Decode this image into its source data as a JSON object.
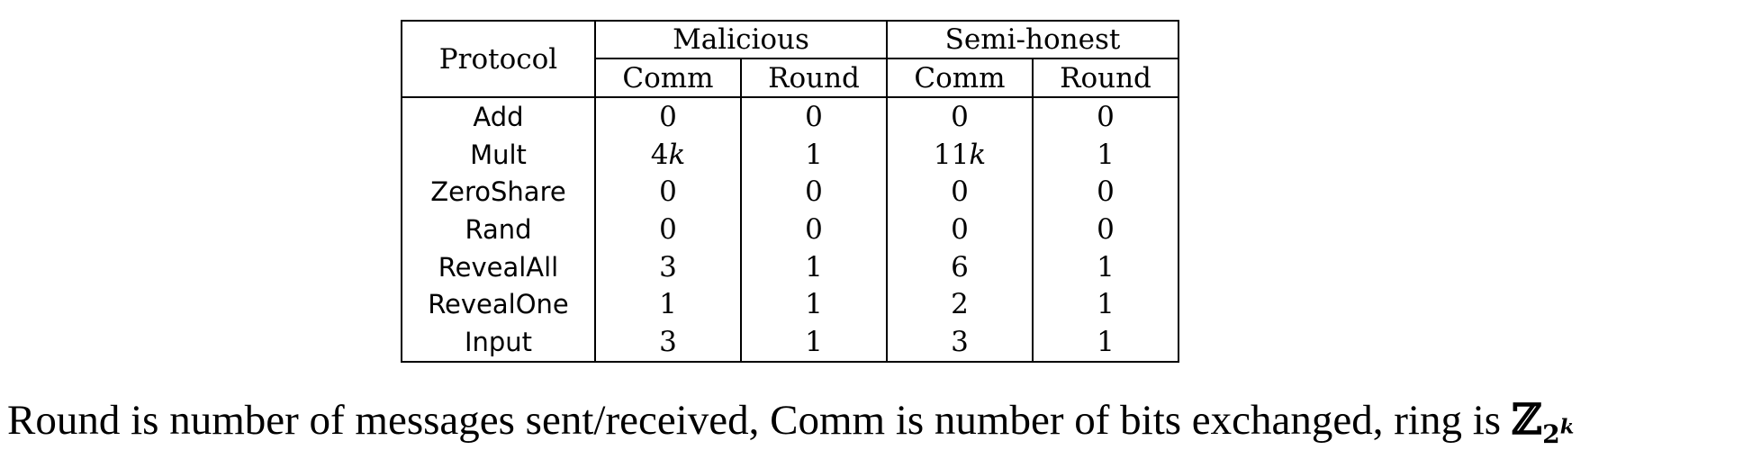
{
  "table": {
    "header": {
      "protocol": "Protocol",
      "groups": [
        "Malicious",
        "Semi-honest"
      ],
      "subcols": [
        "Comm",
        "Round",
        "Comm",
        "Round"
      ]
    },
    "rows": [
      {
        "name": "Add",
        "cells": [
          "0",
          "0",
          "0",
          "0"
        ]
      },
      {
        "name": "Mult",
        "cells": [
          "4k",
          "1",
          "11k",
          "1"
        ]
      },
      {
        "name": "ZeroShare",
        "cells": [
          "0",
          "0",
          "0",
          "0"
        ]
      },
      {
        "name": "Rand",
        "cells": [
          "0",
          "0",
          "0",
          "0"
        ]
      },
      {
        "name": "RevealAll",
        "cells": [
          "3",
          "1",
          "6",
          "1"
        ]
      },
      {
        "name": "RevealOne",
        "cells": [
          "1",
          "1",
          "2",
          "1"
        ]
      },
      {
        "name": "Input",
        "cells": [
          "3",
          "1",
          "3",
          "1"
        ]
      }
    ]
  },
  "caption": {
    "text": "Round is number of messages sent/received, Comm is number of bits exchanged, ring is ",
    "ring_symbol": "ℤ",
    "ring_sub": "2",
    "ring_sup": "k"
  }
}
